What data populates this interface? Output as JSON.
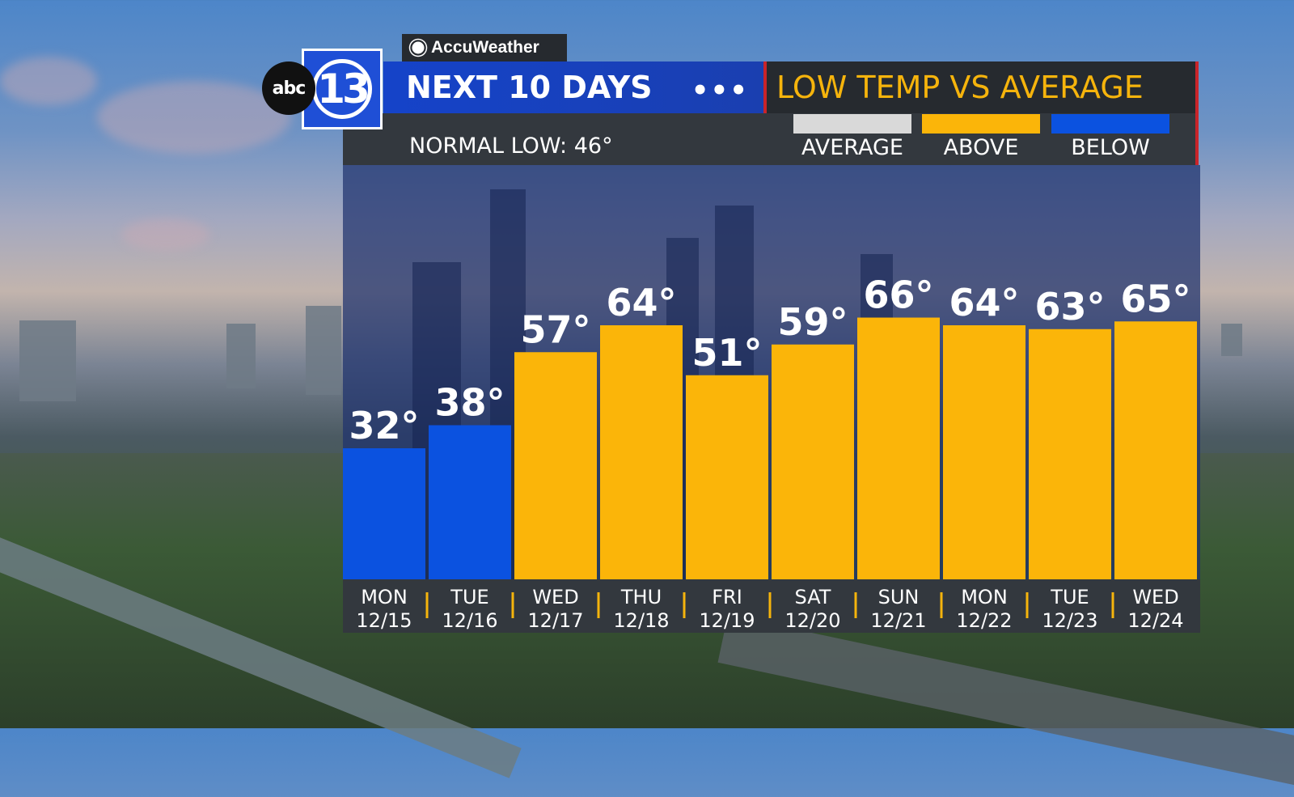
{
  "brand": {
    "station_logo_abc": "abc",
    "station_logo_number": "13",
    "accuweather_label": "AccuWeather"
  },
  "header": {
    "title": "NEXT 10 DAYS",
    "subtitle": "LOW TEMP VS AVERAGE",
    "normal_low": "NORMAL LOW:  46°"
  },
  "legend": [
    {
      "label": "AVERAGE",
      "color": "#d9d9d9"
    },
    {
      "label": "ABOVE",
      "color": "#fbb509"
    },
    {
      "label": "BELOW",
      "color": "#0b52e0"
    }
  ],
  "chart_data": {
    "type": "bar",
    "title": "LOW TEMP VS AVERAGE",
    "categories": [
      {
        "day": "MON",
        "date": "12/15"
      },
      {
        "day": "TUE",
        "date": "12/16"
      },
      {
        "day": "WED",
        "date": "12/17"
      },
      {
        "day": "THU",
        "date": "12/18"
      },
      {
        "day": "FRI",
        "date": "12/19"
      },
      {
        "day": "SAT",
        "date": "12/20"
      },
      {
        "day": "SUN",
        "date": "12/21"
      },
      {
        "day": "MON",
        "date": "12/22"
      },
      {
        "day": "TUE",
        "date": "12/23"
      },
      {
        "day": "WED",
        "date": "12/24"
      }
    ],
    "values": [
      32,
      38,
      57,
      64,
      51,
      59,
      66,
      64,
      63,
      65
    ],
    "value_labels": [
      "32°",
      "38°",
      "57°",
      "64°",
      "51°",
      "59°",
      "66°",
      "64°",
      "63°",
      "65°"
    ],
    "status": [
      "below",
      "below",
      "above",
      "above",
      "above",
      "above",
      "above",
      "above",
      "above",
      "above"
    ],
    "normal_low": 46,
    "colors": {
      "below": "#0b52e0",
      "above": "#fbb509",
      "average": "#d9d9d9"
    },
    "grid": false,
    "legend_position": "top-right"
  }
}
